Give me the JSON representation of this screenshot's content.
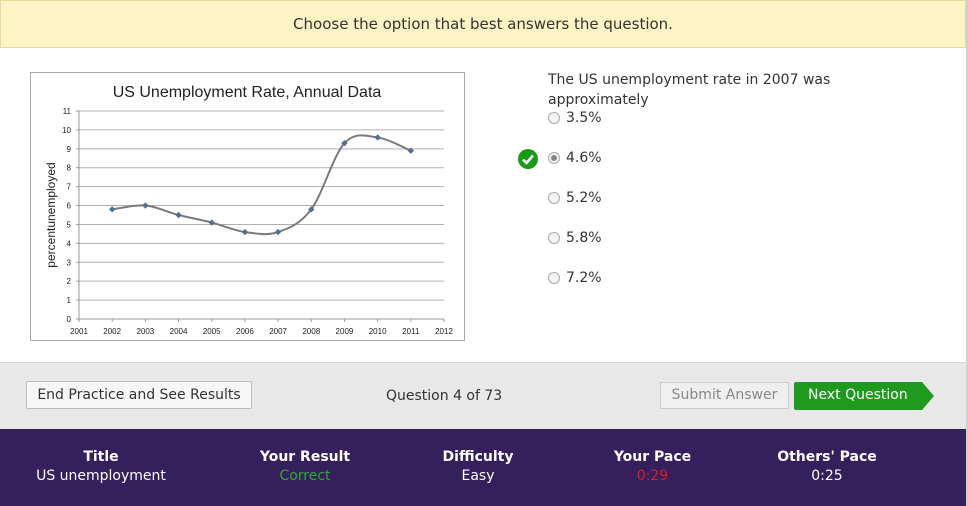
{
  "banner": {
    "text": "Choose the option that best answers the question."
  },
  "chart_data": {
    "type": "line",
    "title": "US Unemployment Rate, Annual Data",
    "xlabel": "",
    "ylabel": "percentunemployed",
    "x": [
      2002,
      2003,
      2004,
      2005,
      2006,
      2007,
      2008,
      2009,
      2010,
      2011
    ],
    "values": [
      5.8,
      6.0,
      5.5,
      5.1,
      4.6,
      4.6,
      5.8,
      9.3,
      9.6,
      8.9
    ],
    "xticks": [
      "2001",
      "2002",
      "2003",
      "2004",
      "2005",
      "2006",
      "2007",
      "2008",
      "2009",
      "2010",
      "2011",
      "2012"
    ],
    "yticks": [
      "0",
      "1",
      "2",
      "3",
      "4",
      "5",
      "6",
      "7",
      "8",
      "9",
      "10",
      "11"
    ],
    "xlim": [
      2001,
      2012
    ],
    "ylim": [
      0,
      11
    ],
    "grid": true,
    "line_color": "#7a7a7a",
    "marker_color": "#4f7196"
  },
  "question": {
    "prompt": "The US unemployment rate in 2007 was approximately",
    "options": [
      "3.5%",
      "4.6%",
      "5.2%",
      "5.8%",
      "7.2%"
    ],
    "selected_index": 1
  },
  "actions": {
    "end_label": "End Practice and See Results",
    "counter": "Question 4 of 73",
    "submit_label": "Submit Answer",
    "next_label": "Next Question"
  },
  "footer": {
    "title_h": "Title",
    "title_v": "US unemployment",
    "result_h": "Your Result",
    "result_v": "Correct",
    "difficulty_h": "Difficulty",
    "difficulty_v": "Easy",
    "pace_h": "Your Pace",
    "pace_v": "0:29",
    "others_h": "Others' Pace",
    "others_v": "0:25"
  },
  "colors": {
    "correct": "#2fa82f",
    "pace": "#e01b1b",
    "check": "#179a17",
    "next": "#1f9a1f"
  }
}
